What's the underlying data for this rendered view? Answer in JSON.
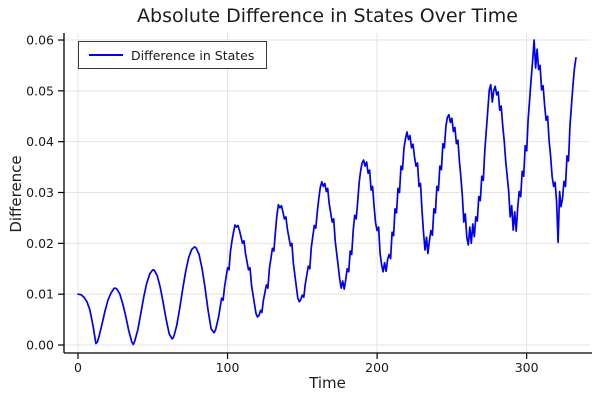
{
  "colors": {
    "line": "#0000ee",
    "grid": "#e4e4e4",
    "axis": "#000000",
    "text": "#1a1a1a"
  },
  "legend": {
    "label": "Difference in States",
    "position": "top-left"
  },
  "chart_data": {
    "type": "line",
    "title": "Absolute Difference in States Over Time",
    "xlabel": "Time",
    "ylabel": "Difference",
    "xlim": [
      -9,
      343
    ],
    "ylim": [
      -0.0016,
      0.0615
    ],
    "x_ticks": [
      0,
      100,
      200,
      300
    ],
    "y_ticks": [
      0.0,
      0.01,
      0.02,
      0.03,
      0.04,
      0.05,
      0.06
    ],
    "y_tick_labels": [
      "0.00",
      "0.01",
      "0.02",
      "0.03",
      "0.04",
      "0.05",
      "0.06"
    ],
    "grid": true,
    "legend_position": "top-left",
    "description": "Oscillating absolute difference with rising envelope and increasing noise; peaks grow from 0.010 at t=0 to 0.060 at t=305; series ends at t=333 at 0.0565.",
    "peaks": [
      [
        0,
        0.01
      ],
      [
        25,
        0.0112
      ],
      [
        50,
        0.0148
      ],
      [
        78,
        0.0193
      ],
      [
        105,
        0.0236
      ],
      [
        134,
        0.0276
      ],
      [
        163,
        0.0321
      ],
      [
        191,
        0.0364
      ],
      [
        220,
        0.0419
      ],
      [
        248,
        0.0453
      ],
      [
        276,
        0.0512
      ],
      [
        305,
        0.06
      ],
      [
        333,
        0.0565
      ]
    ],
    "valleys": [
      [
        12,
        0.0003
      ],
      [
        37,
        0.0001
      ],
      [
        63,
        0.0012
      ],
      [
        91,
        0.0024
      ],
      [
        120,
        0.0055
      ],
      [
        148,
        0.0085
      ],
      [
        176,
        0.0112
      ],
      [
        204,
        0.0144
      ],
      [
        232,
        0.0187
      ],
      [
        261,
        0.0197
      ],
      [
        291,
        0.0226
      ],
      [
        321,
        0.0202
      ]
    ],
    "series": [
      {
        "name": "Difference in States",
        "color": "#0000ee",
        "points": [
          [
            0,
            0.01
          ],
          [
            2,
            0.0099
          ],
          [
            4,
            0.0094
          ],
          [
            6,
            0.0085
          ],
          [
            8,
            0.0068
          ],
          [
            10,
            0.0038
          ],
          [
            11,
            0.002
          ],
          [
            12,
            0.0003
          ],
          [
            13,
            0.0006
          ],
          [
            14,
            0.0016
          ],
          [
            16,
            0.004
          ],
          [
            18,
            0.0066
          ],
          [
            20,
            0.0088
          ],
          [
            22,
            0.0102
          ],
          [
            24,
            0.0111
          ],
          [
            25,
            0.0112
          ],
          [
            26,
            0.011
          ],
          [
            28,
            0.01
          ],
          [
            30,
            0.008
          ],
          [
            32,
            0.0055
          ],
          [
            34,
            0.0028
          ],
          [
            36,
            0.0006
          ],
          [
            37,
            0.0001
          ],
          [
            38,
            0.0008
          ],
          [
            40,
            0.003
          ],
          [
            42,
            0.0062
          ],
          [
            44,
            0.0095
          ],
          [
            46,
            0.0122
          ],
          [
            48,
            0.014
          ],
          [
            50,
            0.0148
          ],
          [
            51,
            0.0147
          ],
          [
            53,
            0.0136
          ],
          [
            55,
            0.0113
          ],
          [
            57,
            0.0083
          ],
          [
            59,
            0.005
          ],
          [
            61,
            0.0022
          ],
          [
            63,
            0.0012
          ],
          [
            64,
            0.0016
          ],
          [
            66,
            0.0038
          ],
          [
            68,
            0.0072
          ],
          [
            70,
            0.011
          ],
          [
            72,
            0.0145
          ],
          [
            74,
            0.0172
          ],
          [
            76,
            0.0188
          ],
          [
            78,
            0.0193
          ],
          [
            79,
            0.0191
          ],
          [
            81,
            0.0178
          ],
          [
            83,
            0.015
          ],
          [
            85,
            0.0112
          ],
          [
            87,
            0.0068
          ],
          [
            89,
            0.0032
          ],
          [
            91,
            0.0024
          ],
          [
            92,
            0.003
          ],
          [
            94,
            0.0055
          ],
          [
            96,
            0.0092
          ],
          [
            97,
            0.0088
          ],
          [
            98,
            0.0115
          ],
          [
            100,
            0.0152
          ],
          [
            101,
            0.0148
          ],
          [
            102,
            0.0185
          ],
          [
            103,
            0.0205
          ],
          [
            104,
            0.0222
          ],
          [
            105,
            0.0236
          ],
          [
            106,
            0.0232
          ],
          [
            107,
            0.0235
          ],
          [
            108,
            0.0225
          ],
          [
            110,
            0.02
          ],
          [
            111,
            0.0205
          ],
          [
            112,
            0.018
          ],
          [
            114,
            0.0148
          ],
          [
            115,
            0.0152
          ],
          [
            116,
            0.0118
          ],
          [
            118,
            0.008
          ],
          [
            119,
            0.0062
          ],
          [
            120,
            0.0055
          ],
          [
            121,
            0.0058
          ],
          [
            122,
            0.0068
          ],
          [
            123,
            0.0064
          ],
          [
            124,
            0.0088
          ],
          [
            126,
            0.0118
          ],
          [
            127,
            0.0112
          ],
          [
            128,
            0.015
          ],
          [
            130,
            0.019
          ],
          [
            131,
            0.0185
          ],
          [
            132,
            0.0222
          ],
          [
            133,
            0.0255
          ],
          [
            134,
            0.0276
          ],
          [
            135,
            0.027
          ],
          [
            136,
            0.0274
          ],
          [
            137,
            0.0262
          ],
          [
            138,
            0.0248
          ],
          [
            139,
            0.0252
          ],
          [
            140,
            0.0228
          ],
          [
            142,
            0.0195
          ],
          [
            143,
            0.02
          ],
          [
            144,
            0.016
          ],
          [
            146,
            0.0115
          ],
          [
            147,
            0.0092
          ],
          [
            148,
            0.0085
          ],
          [
            149,
            0.009
          ],
          [
            150,
            0.0098
          ],
          [
            151,
            0.0094
          ],
          [
            152,
            0.012
          ],
          [
            154,
            0.0155
          ],
          [
            155,
            0.015
          ],
          [
            156,
            0.0192
          ],
          [
            158,
            0.0235
          ],
          [
            159,
            0.023
          ],
          [
            160,
            0.0262
          ],
          [
            161,
            0.0288
          ],
          [
            162,
            0.031
          ],
          [
            163,
            0.0321
          ],
          [
            164,
            0.0312
          ],
          [
            165,
            0.0318
          ],
          [
            166,
            0.0302
          ],
          [
            167,
            0.0308
          ],
          [
            168,
            0.0278
          ],
          [
            170,
            0.0242
          ],
          [
            171,
            0.0248
          ],
          [
            172,
            0.0205
          ],
          [
            174,
            0.0155
          ],
          [
            175,
            0.013
          ],
          [
            176,
            0.0112
          ],
          [
            177,
            0.0126
          ],
          [
            178,
            0.011
          ],
          [
            179,
            0.0128
          ],
          [
            180,
            0.015
          ],
          [
            181,
            0.0144
          ],
          [
            182,
            0.0185
          ],
          [
            183,
            0.0178
          ],
          [
            184,
            0.0225
          ],
          [
            185,
            0.0255
          ],
          [
            186,
            0.0248
          ],
          [
            187,
            0.0282
          ],
          [
            188,
            0.032
          ],
          [
            189,
            0.0342
          ],
          [
            190,
            0.0358
          ],
          [
            191,
            0.0364
          ],
          [
            192,
            0.0352
          ],
          [
            193,
            0.036
          ],
          [
            194,
            0.0338
          ],
          [
            195,
            0.0344
          ],
          [
            196,
            0.0305
          ],
          [
            197,
            0.0312
          ],
          [
            198,
            0.0272
          ],
          [
            199,
            0.024
          ],
          [
            200,
            0.0225
          ],
          [
            201,
            0.0232
          ],
          [
            202,
            0.018
          ],
          [
            203,
            0.0158
          ],
          [
            204,
            0.0144
          ],
          [
            205,
            0.0162
          ],
          [
            206,
            0.0145
          ],
          [
            207,
            0.0168
          ],
          [
            208,
            0.0178
          ],
          [
            209,
            0.017
          ],
          [
            210,
            0.0222
          ],
          [
            211,
            0.0215
          ],
          [
            212,
            0.0268
          ],
          [
            213,
            0.026
          ],
          [
            214,
            0.0308
          ],
          [
            215,
            0.03
          ],
          [
            216,
            0.0352
          ],
          [
            217,
            0.0345
          ],
          [
            218,
            0.0388
          ],
          [
            219,
            0.0406
          ],
          [
            220,
            0.0419
          ],
          [
            221,
            0.0404
          ],
          [
            222,
            0.0412
          ],
          [
            223,
            0.0388
          ],
          [
            224,
            0.0395
          ],
          [
            225,
            0.037
          ],
          [
            226,
            0.0352
          ],
          [
            227,
            0.0358
          ],
          [
            228,
            0.0312
          ],
          [
            229,
            0.0318
          ],
          [
            230,
            0.0265
          ],
          [
            231,
            0.0222
          ],
          [
            232,
            0.0187
          ],
          [
            233,
            0.0212
          ],
          [
            234,
            0.018
          ],
          [
            235,
            0.0205
          ],
          [
            236,
            0.0225
          ],
          [
            237,
            0.0216
          ],
          [
            238,
            0.0268
          ],
          [
            239,
            0.026
          ],
          [
            240,
            0.0312
          ],
          [
            241,
            0.0304
          ],
          [
            242,
            0.0352
          ],
          [
            243,
            0.0345
          ],
          [
            244,
            0.0396
          ],
          [
            245,
            0.0388
          ],
          [
            246,
            0.043
          ],
          [
            247,
            0.0448
          ],
          [
            248,
            0.0453
          ],
          [
            249,
            0.0438
          ],
          [
            250,
            0.0446
          ],
          [
            251,
            0.042
          ],
          [
            252,
            0.0428
          ],
          [
            253,
            0.0396
          ],
          [
            254,
            0.0403
          ],
          [
            255,
            0.0362
          ],
          [
            256,
            0.0332
          ],
          [
            257,
            0.0295
          ],
          [
            258,
            0.0242
          ],
          [
            259,
            0.0258
          ],
          [
            260,
            0.0212
          ],
          [
            261,
            0.0197
          ],
          [
            262,
            0.0232
          ],
          [
            263,
            0.02
          ],
          [
            264,
            0.0238
          ],
          [
            265,
            0.0213
          ],
          [
            266,
            0.0252
          ],
          [
            267,
            0.0244
          ],
          [
            268,
            0.0292
          ],
          [
            269,
            0.0284
          ],
          [
            270,
            0.0332
          ],
          [
            271,
            0.0324
          ],
          [
            272,
            0.0382
          ],
          [
            273,
            0.0422
          ],
          [
            274,
            0.0462
          ],
          [
            275,
            0.0502
          ],
          [
            276,
            0.0512
          ],
          [
            277,
            0.0478
          ],
          [
            278,
            0.05
          ],
          [
            279,
            0.0509
          ],
          [
            280,
            0.0492
          ],
          [
            281,
            0.0498
          ],
          [
            282,
            0.0462
          ],
          [
            283,
            0.047
          ],
          [
            284,
            0.0432
          ],
          [
            285,
            0.0402
          ],
          [
            286,
            0.0362
          ],
          [
            287,
            0.0332
          ],
          [
            288,
            0.0302
          ],
          [
            289,
            0.0252
          ],
          [
            290,
            0.0274
          ],
          [
            291,
            0.0226
          ],
          [
            292,
            0.0262
          ],
          [
            293,
            0.0224
          ],
          [
            294,
            0.027
          ],
          [
            295,
            0.0302
          ],
          [
            296,
            0.0292
          ],
          [
            297,
            0.0342
          ],
          [
            298,
            0.0332
          ],
          [
            299,
            0.0392
          ],
          [
            300,
            0.0382
          ],
          [
            301,
            0.0442
          ],
          [
            302,
            0.0482
          ],
          [
            303,
            0.0522
          ],
          [
            304,
            0.0558
          ],
          [
            305,
            0.06
          ],
          [
            306,
            0.0545
          ],
          [
            307,
            0.0582
          ],
          [
            308,
            0.0542
          ],
          [
            309,
            0.055
          ],
          [
            310,
            0.0502
          ],
          [
            311,
            0.051
          ],
          [
            312,
            0.0472
          ],
          [
            313,
            0.0442
          ],
          [
            314,
            0.045
          ],
          [
            315,
            0.0402
          ],
          [
            316,
            0.0372
          ],
          [
            317,
            0.0332
          ],
          [
            318,
            0.0312
          ],
          [
            319,
            0.032
          ],
          [
            320,
            0.0282
          ],
          [
            321,
            0.0202
          ],
          [
            322,
            0.0302
          ],
          [
            323,
            0.0272
          ],
          [
            324,
            0.0288
          ],
          [
            325,
            0.0322
          ],
          [
            326,
            0.0312
          ],
          [
            327,
            0.0372
          ],
          [
            328,
            0.0362
          ],
          [
            329,
            0.0432
          ],
          [
            330,
            0.0472
          ],
          [
            331,
            0.0512
          ],
          [
            332,
            0.0545
          ],
          [
            333,
            0.0565
          ]
        ]
      }
    ]
  }
}
